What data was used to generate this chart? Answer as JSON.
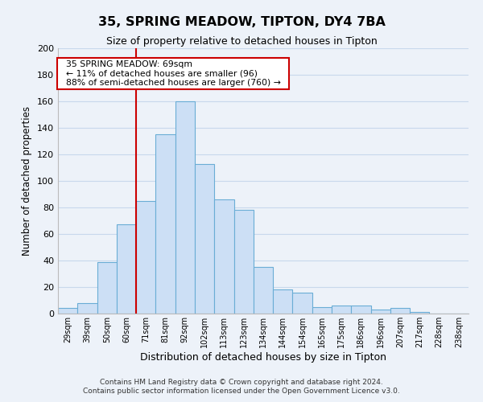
{
  "title": "35, SPRING MEADOW, TIPTON, DY4 7BA",
  "subtitle": "Size of property relative to detached houses in Tipton",
  "xlabel": "Distribution of detached houses by size in Tipton",
  "ylabel": "Number of detached properties",
  "bar_labels": [
    "29sqm",
    "39sqm",
    "50sqm",
    "60sqm",
    "71sqm",
    "81sqm",
    "92sqm",
    "102sqm",
    "113sqm",
    "123sqm",
    "134sqm",
    "144sqm",
    "154sqm",
    "165sqm",
    "175sqm",
    "186sqm",
    "196sqm",
    "207sqm",
    "217sqm",
    "228sqm",
    "238sqm"
  ],
  "bar_values": [
    4,
    8,
    39,
    67,
    85,
    135,
    160,
    113,
    86,
    78,
    35,
    18,
    16,
    5,
    6,
    6,
    3,
    4,
    1,
    0,
    0
  ],
  "bar_color": "#ccdff5",
  "bar_edge_color": "#6aadd5",
  "vline_index": 4,
  "vline_color": "#cc0000",
  "ylim": [
    0,
    200
  ],
  "yticks": [
    0,
    20,
    40,
    60,
    80,
    100,
    120,
    140,
    160,
    180,
    200
  ],
  "annotation_title": "35 SPRING MEADOW: 69sqm",
  "annotation_line1": "← 11% of detached houses are smaller (96)",
  "annotation_line2": "88% of semi-detached houses are larger (760) →",
  "annotation_box_color": "#ffffff",
  "annotation_box_edge": "#cc0000",
  "footer1": "Contains HM Land Registry data © Crown copyright and database right 2024.",
  "footer2": "Contains public sector information licensed under the Open Government Licence v3.0.",
  "grid_color": "#c8d8ec",
  "background_color": "#edf2f9"
}
